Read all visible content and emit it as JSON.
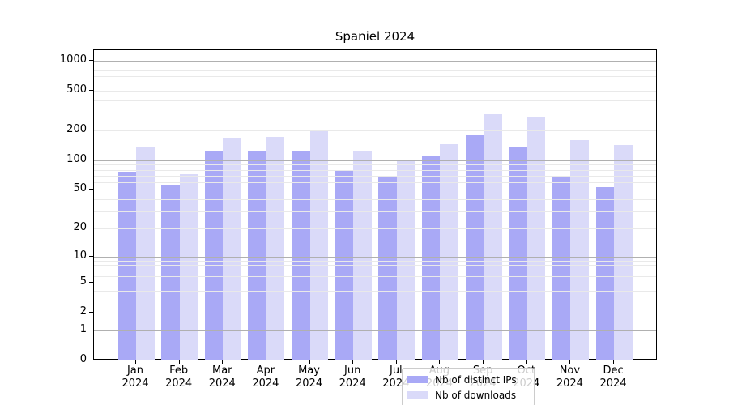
{
  "title": "Spaniel 2024",
  "chart_data": {
    "type": "bar",
    "title": "Spaniel 2024",
    "categories": [
      "Jan",
      "Feb",
      "Mar",
      "Apr",
      "May",
      "Jun",
      "Jul",
      "Aug",
      "Sep",
      "Oct",
      "Nov",
      "Dec"
    ],
    "year_label": "2024",
    "series": [
      {
        "name": "Nb of distinct IPs",
        "color": "#a9a9f6",
        "values": [
          77,
          55,
          125,
          123,
          125,
          78,
          68,
          110,
          180,
          138,
          70,
          53
        ]
      },
      {
        "name": "Nb of downloads",
        "color": "#dadaf9",
        "values": [
          135,
          72,
          169,
          172,
          200,
          125,
          98,
          146,
          290,
          275,
          160,
          142
        ]
      }
    ],
    "xlabel": "",
    "ylabel": "",
    "y_axis": {
      "scale": "symlog",
      "ticks": [
        0,
        1,
        2,
        5,
        10,
        20,
        50,
        100,
        200,
        500,
        1000
      ],
      "major_gridlines": [
        1,
        10,
        100,
        1000
      ],
      "ylim": [
        0,
        1284
      ]
    },
    "grid": true,
    "legend_position": "lower center",
    "colors": {
      "major_gridline": "#b0b0b0",
      "minor_gridline": "#e9e9e9",
      "spine": "#000000",
      "background": "#ffffff"
    }
  },
  "legend": {
    "items": [
      {
        "label": "Nb of distinct IPs"
      },
      {
        "label": "Nb of downloads"
      }
    ]
  }
}
